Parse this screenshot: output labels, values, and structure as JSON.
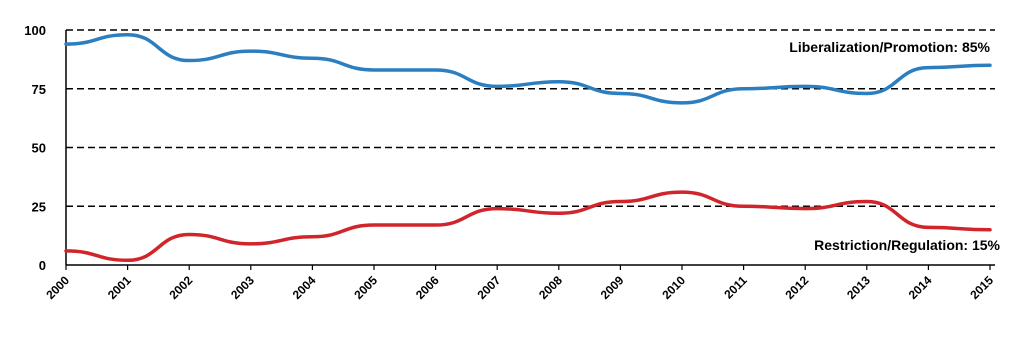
{
  "chart_data": {
    "type": "line",
    "title": "",
    "xlabel": "",
    "ylabel": "",
    "ylim": [
      0,
      100
    ],
    "yticks": [
      0,
      25,
      50,
      75,
      100
    ],
    "grid": "dashed horizontal",
    "categories": [
      "2000",
      "2001",
      "2002",
      "2003",
      "2004",
      "2005",
      "2006",
      "2007",
      "2008",
      "2009",
      "2010",
      "2011",
      "2012",
      "2013",
      "2014",
      "2015"
    ],
    "series": [
      {
        "color": "#2b7fc0",
        "values": [
          94,
          98,
          87,
          91,
          88,
          83,
          83,
          76,
          78,
          73,
          69,
          75,
          76,
          73,
          84,
          85
        ]
      },
      {
        "color": "#d0252a",
        "values": [
          6,
          2,
          13,
          9,
          12,
          17,
          17,
          24,
          22,
          27,
          31,
          25,
          24,
          27,
          16,
          15
        ]
      }
    ],
    "annotations": [
      {
        "text": "Liberalization/Promotion: 85%",
        "series": 0
      },
      {
        "text": "Restriction/Regulation: 15%",
        "series": 1
      }
    ]
  }
}
